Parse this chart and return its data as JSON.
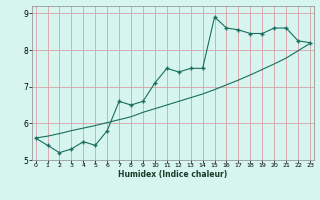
{
  "xlabel": "Humidex (Indice chaleur)",
  "background_color": "#d6f5ef",
  "grid_color": "#d9a0a8",
  "line_color": "#1a6e5e",
  "marker_color": "#1a6e5e",
  "x_data": [
    0,
    1,
    2,
    3,
    4,
    5,
    6,
    7,
    8,
    9,
    10,
    11,
    12,
    13,
    14,
    15,
    16,
    17,
    18,
    19,
    20,
    21,
    22,
    23
  ],
  "y_main": [
    5.6,
    5.4,
    5.2,
    5.3,
    5.5,
    5.4,
    5.8,
    6.6,
    6.5,
    6.6,
    7.1,
    7.5,
    7.4,
    7.5,
    7.5,
    8.9,
    8.6,
    8.55,
    8.45,
    8.45,
    8.6,
    8.6,
    8.25,
    8.2
  ],
  "y_trend": [
    5.6,
    5.65,
    5.72,
    5.8,
    5.87,
    5.94,
    6.02,
    6.1,
    6.18,
    6.3,
    6.4,
    6.5,
    6.6,
    6.7,
    6.8,
    6.92,
    7.05,
    7.18,
    7.32,
    7.47,
    7.62,
    7.78,
    7.98,
    8.18
  ],
  "xlim": [
    0,
    23
  ],
  "ylim": [
    5.0,
    9.2
  ],
  "yticks": [
    5,
    6,
    7,
    8,
    9
  ],
  "xticks": [
    0,
    1,
    2,
    3,
    4,
    5,
    6,
    7,
    8,
    9,
    10,
    11,
    12,
    13,
    14,
    15,
    16,
    17,
    18,
    19,
    20,
    21,
    22,
    23
  ]
}
